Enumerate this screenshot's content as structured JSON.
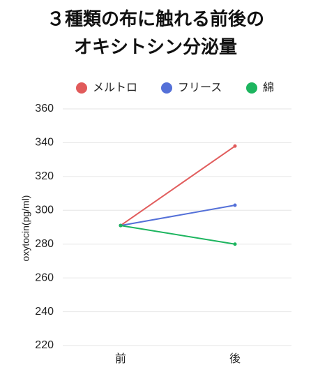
{
  "chart_data": {
    "type": "line",
    "title_lines": [
      "３種類の布に触れる前後の",
      "オキシトシン分泌量"
    ],
    "xlabel": "",
    "ylabel": "oxytocin(pg/ml)",
    "categories": [
      "前",
      "後"
    ],
    "ylim": [
      220,
      360
    ],
    "yticks": [
      220,
      240,
      260,
      280,
      300,
      320,
      340,
      360
    ],
    "grid": true,
    "legend_position": "top",
    "series": [
      {
        "name": "メルトロ",
        "color": "#e15b5b",
        "values": [
          291,
          338
        ]
      },
      {
        "name": "フリース",
        "color": "#5470d8",
        "values": [
          291,
          303
        ]
      },
      {
        "name": "綿",
        "color": "#1db55f",
        "values": [
          291,
          280
        ]
      }
    ]
  }
}
